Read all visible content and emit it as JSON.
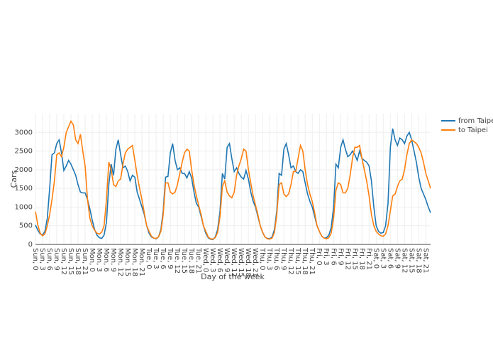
{
  "chart_data": {
    "type": "line",
    "xlabel": "Day of the week",
    "ylabel": "Cars",
    "categories": [
      "Sun, 0",
      null,
      null,
      "Sun, 3",
      null,
      null,
      "Sun, 6",
      null,
      null,
      "Sun, 9",
      null,
      null,
      "Sun, 12",
      null,
      null,
      "Sun, 15",
      null,
      null,
      "Sun, 18",
      null,
      null,
      "Sun, 21",
      null,
      null,
      "Mon, 0",
      null,
      null,
      "Mon, 3",
      null,
      null,
      "Mon, 6",
      null,
      null,
      "Mon, 9",
      null,
      null,
      "Mon, 12",
      null,
      null,
      "Mon, 15",
      null,
      null,
      "Mon, 18",
      null,
      null,
      "Mon, 21",
      null,
      null,
      "Tue, 0",
      null,
      null,
      "Tue, 3",
      null,
      null,
      "Tue, 6",
      null,
      null,
      "Tue, 9",
      null,
      null,
      "Tue, 12",
      null,
      null,
      "Tue, 15",
      null,
      null,
      "Tue, 18",
      null,
      null,
      "Tue, 21",
      null,
      null,
      "Wed, 0",
      null,
      null,
      "Wed, 3",
      null,
      null,
      "Wed, 6",
      null,
      null,
      "Wed, 9",
      null,
      null,
      "Wed, 12",
      null,
      null,
      "Wed, 15",
      null,
      null,
      "Wed, 18",
      null,
      null,
      "Wed, 21",
      null,
      null,
      "Thu, 0",
      null,
      null,
      "Thu, 3",
      null,
      null,
      "Thu, 6",
      null,
      null,
      "Thu, 9",
      null,
      null,
      "Thu, 12",
      null,
      null,
      "Thu, 15",
      null,
      null,
      "Thu, 18",
      null,
      null,
      "Thu, 21",
      null,
      null,
      "Fri, 0",
      null,
      null,
      "Fri, 3",
      null,
      null,
      "Fri, 6",
      null,
      null,
      "Fri, 9",
      null,
      null,
      "Fri, 12",
      null,
      null,
      "Fri, 15",
      null,
      null,
      "Fri, 18",
      null,
      null,
      "Fri, 21",
      null,
      null,
      "Sat, 0",
      null,
      null,
      "Sat, 3",
      null,
      null,
      "Sat, 6",
      null,
      null,
      "Sat, 9",
      null,
      null,
      "Sat, 12",
      null,
      null,
      "Sat, 15",
      null,
      null,
      "Sat, 18",
      null,
      null,
      "Sat, 21",
      null,
      null
    ],
    "series": [
      {
        "name": "from Taipei",
        "color": "#1f77b4",
        "values": [
          520,
          380,
          280,
          250,
          350,
          700,
          1500,
          2400,
          2450,
          2700,
          2800,
          2450,
          1980,
          2100,
          2250,
          2150,
          2000,
          1850,
          1600,
          1400,
          1380,
          1380,
          1200,
          950,
          650,
          400,
          250,
          180,
          160,
          250,
          600,
          1600,
          2150,
          1850,
          2550,
          2800,
          2400,
          2050,
          2100,
          1950,
          1700,
          1850,
          1800,
          1400,
          1200,
          1000,
          800,
          500,
          300,
          200,
          170,
          150,
          200,
          400,
          900,
          1800,
          1820,
          2450,
          2700,
          2250,
          2000,
          2050,
          1900,
          1900,
          1780,
          1950,
          1780,
          1400,
          1100,
          1000,
          750,
          500,
          300,
          180,
          140,
          130,
          200,
          400,
          900,
          1900,
          1750,
          2600,
          2700,
          2300,
          1950,
          2050,
          1900,
          1800,
          1750,
          1980,
          1750,
          1400,
          1150,
          1000,
          750,
          500,
          320,
          200,
          160,
          150,
          200,
          400,
          900,
          1900,
          1850,
          2550,
          2700,
          2400,
          2050,
          2100,
          1950,
          1900,
          2000,
          1950,
          1650,
          1350,
          1150,
          1000,
          750,
          500,
          350,
          220,
          170,
          180,
          250,
          450,
          1000,
          2150,
          2050,
          2600,
          2800,
          2550,
          2350,
          2400,
          2500,
          2400,
          2250,
          2500,
          2300,
          2250,
          2200,
          2100,
          1700,
          1000,
          500,
          350,
          300,
          320,
          500,
          1100,
          2600,
          3100,
          2800,
          2650,
          2850,
          2800,
          2700,
          2900,
          3000,
          2800,
          2500,
          2200,
          1800,
          1500,
          1350,
          1200,
          1000,
          850
        ]
      },
      {
        "name": "to Taipei",
        "color": "#ff7f0e",
        "values": [
          880,
          520,
          300,
          230,
          280,
          500,
          800,
          1200,
          1700,
          2400,
          2450,
          2350,
          2600,
          3000,
          3150,
          3300,
          3200,
          2800,
          2700,
          2950,
          2500,
          2100,
          1200,
          700,
          500,
          380,
          300,
          280,
          330,
          500,
          1200,
          2200,
          2000,
          1600,
          1550,
          1700,
          1750,
          2150,
          2450,
          2550,
          2600,
          2650,
          2250,
          1850,
          1500,
          1200,
          850,
          500,
          350,
          220,
          170,
          160,
          200,
          350,
          800,
          1650,
          1650,
          1400,
          1350,
          1400,
          1600,
          1900,
          2200,
          2450,
          2550,
          2500,
          2000,
          1600,
          1300,
          1050,
          800,
          500,
          350,
          200,
          150,
          140,
          180,
          320,
          750,
          1550,
          1700,
          1400,
          1300,
          1250,
          1400,
          1850,
          2100,
          2300,
          2550,
          2500,
          2000,
          1650,
          1300,
          1050,
          800,
          500,
          330,
          200,
          150,
          140,
          170,
          320,
          800,
          1600,
          1650,
          1350,
          1280,
          1350,
          1600,
          1950,
          1950,
          2300,
          2650,
          2500,
          2000,
          1600,
          1350,
          1150,
          850,
          500,
          350,
          220,
          170,
          150,
          180,
          300,
          700,
          1450,
          1650,
          1600,
          1380,
          1380,
          1500,
          1850,
          2300,
          2600,
          2600,
          2650,
          2300,
          2000,
          1700,
          1300,
          800,
          500,
          350,
          280,
          230,
          220,
          280,
          500,
          900,
          1300,
          1350,
          1550,
          1700,
          1750,
          2000,
          2400,
          2700,
          2800,
          2750,
          2700,
          2600,
          2450,
          2200,
          1900,
          1700,
          1500
        ]
      }
    ],
    "ylim": [
      0,
      3500
    ],
    "yticks": [
      0,
      500,
      1000,
      1500,
      2000,
      2500,
      3000
    ],
    "grid": true,
    "legend": "top-right"
  }
}
